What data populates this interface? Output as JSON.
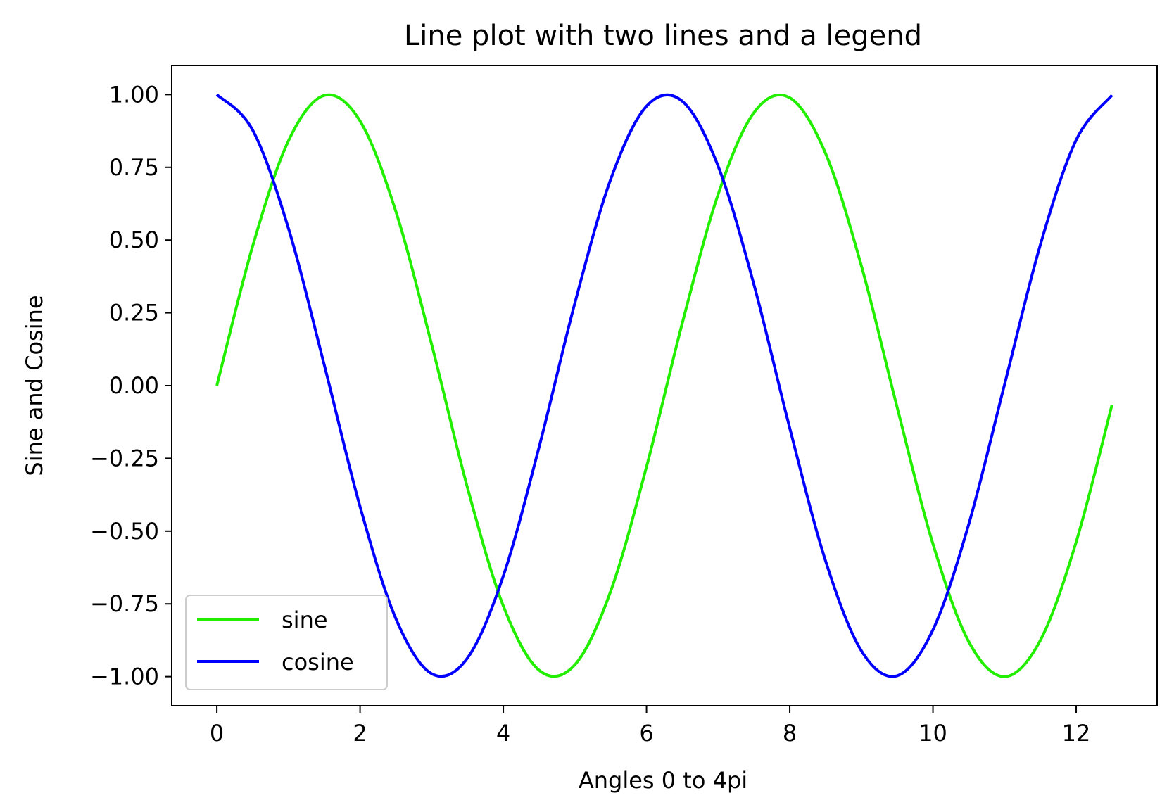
{
  "chart_data": {
    "type": "line",
    "title": "Line plot with two lines and a legend",
    "xlabel": "Angles 0 to 4pi",
    "ylabel": "Sine and Cosine",
    "xlim": [
      -0.63,
      13.13
    ],
    "ylim": [
      -1.1,
      1.1
    ],
    "x_ticks": [
      0,
      2,
      4,
      6,
      8,
      10,
      12
    ],
    "x_tick_labels": [
      "0",
      "2",
      "4",
      "6",
      "8",
      "10",
      "12"
    ],
    "y_ticks": [
      1.0,
      0.75,
      0.5,
      0.25,
      0.0,
      -0.25,
      -0.5,
      -0.75,
      -1.0
    ],
    "y_tick_labels": [
      "1.00",
      "0.75",
      "0.50",
      "0.25",
      "0.00",
      "−0.25",
      "−0.50",
      "−0.75",
      "−1.00"
    ],
    "grid": false,
    "legend_placement": "lower-left",
    "x": [
      0.0,
      0.5,
      1.0,
      1.5,
      2.0,
      2.5,
      3.0,
      3.5,
      4.0,
      4.5,
      5.0,
      5.5,
      6.0,
      6.5,
      7.0,
      7.5,
      8.0,
      8.5,
      9.0,
      9.5,
      10.0,
      10.5,
      11.0,
      11.5,
      12.0,
      12.5
    ],
    "series": [
      {
        "name": "sine",
        "color": "#22ee00",
        "values": [
          0.0,
          0.479,
          0.841,
          0.997,
          0.909,
          0.598,
          0.141,
          -0.351,
          -0.757,
          -0.978,
          -0.959,
          -0.706,
          -0.279,
          0.215,
          0.657,
          0.938,
          0.989,
          0.798,
          0.412,
          -0.075,
          -0.544,
          -0.88,
          -1.0,
          -0.875,
          -0.537,
          -0.066
        ]
      },
      {
        "name": "cosine",
        "color": "#0000ff",
        "values": [
          1.0,
          0.878,
          0.54,
          0.071,
          -0.416,
          -0.801,
          -0.99,
          -0.936,
          -0.654,
          -0.211,
          0.284,
          0.709,
          0.96,
          0.977,
          0.754,
          0.347,
          -0.146,
          -0.602,
          -0.911,
          -0.997,
          -0.839,
          -0.476,
          0.004,
          0.484,
          0.844,
          0.998
        ]
      }
    ]
  }
}
